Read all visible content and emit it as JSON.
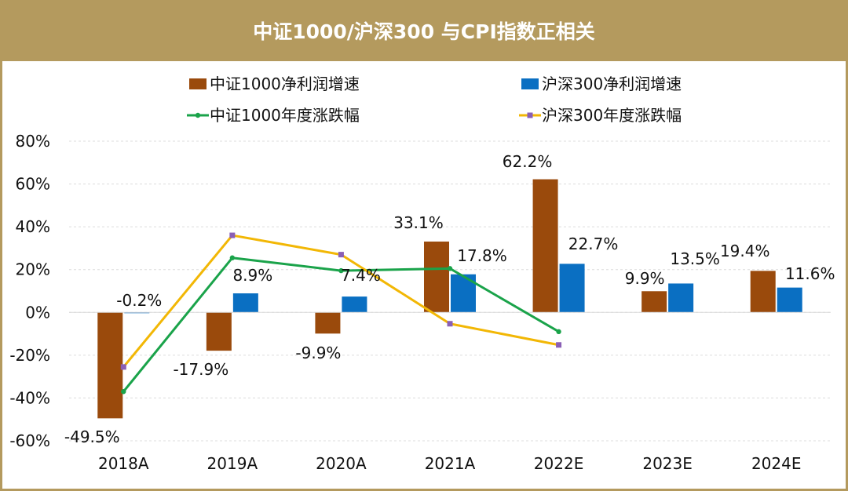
{
  "chart_data": {
    "type": "bar",
    "title": "中证1000/沪深300 与CPI指数正相关",
    "categories": [
      "2018A",
      "2019A",
      "2020A",
      "2021A",
      "2022E",
      "2023E",
      "2024E"
    ],
    "ylim": [
      -60,
      80
    ],
    "y_ticks": [
      "-60%",
      "-40%",
      "-20%",
      "0%",
      "20%",
      "40%",
      "60%",
      "80%"
    ],
    "grid": true,
    "legend_position": "top",
    "bar_series": [
      {
        "name": "中证1000净利润增速",
        "color": "#9a4a0c",
        "values": [
          -49.5,
          -17.9,
          -9.9,
          33.1,
          62.2,
          9.9,
          19.4
        ],
        "labels": [
          "-49.5%",
          "-17.9%",
          "-9.9%",
          "33.1%",
          "62.2%",
          "9.9%",
          "19.4%"
        ]
      },
      {
        "name": "沪深300净利润增速",
        "color": "#0a6fc2",
        "values": [
          -0.2,
          8.9,
          7.4,
          17.8,
          22.7,
          13.5,
          11.6
        ],
        "labels": [
          "-0.2%",
          "8.9%",
          "7.4%",
          "17.8%",
          "22.7%",
          "13.5%",
          "11.6%"
        ]
      }
    ],
    "line_series": [
      {
        "name": "中证1000年度涨跌幅",
        "color": "#1aa34a",
        "marker_color": "#1aa34a",
        "values": [
          -37,
          25.5,
          19.5,
          20.5,
          -9,
          null,
          null
        ]
      },
      {
        "name": "沪深300年度涨跌幅",
        "color": "#f2b705",
        "marker_color": "#8a5fb5",
        "values": [
          -25.5,
          36,
          27,
          -5.3,
          -15.2,
          null,
          null
        ]
      }
    ]
  }
}
